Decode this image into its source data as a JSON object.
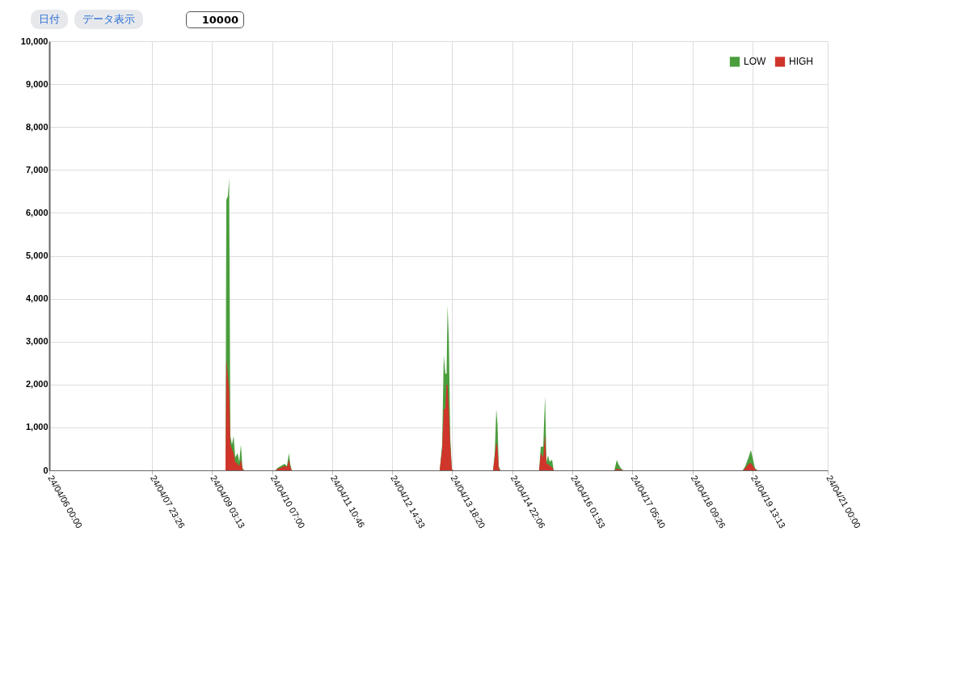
{
  "chart_data": {
    "type": "area",
    "annotations": [
      "日付",
      "データ表示",
      "10000"
    ],
    "x": [
      "--04-06T00:00",
      "--04-09T08:22",
      "--04-09T09:30",
      "--04-09T09:52",
      "--04-09T10:37",
      "--04-09T11:11",
      "--04-09T11:44",
      "--04-09T12:29",
      "--04-09T13:14",
      "--04-09T13:59",
      "--04-09T15:06",
      "--04-09T15:51",
      "--04-09T16:36",
      "--04-09T17:21",
      "--04-09T18:05",
      "--04-10T08:40",
      "--04-10T09:25",
      "--04-10T12:47",
      "--04-10T13:54",
      "--04-10T14:50",
      "--04-10T15:24",
      "--04-10T16:09",
      "--04-13T12:33",
      "--04-13T13:41",
      "--04-13T14:25",
      "--04-13T15:10",
      "--04-13T15:44",
      "--04-13T16:11",
      "--04-13T16:47",
      "--04-13T17:25",
      "--04-13T18:10",
      "--04-13T18:55",
      "--04-14T13:14",
      "--04-14T13:59",
      "--04-14T14:44",
      "--04-14T15:17",
      "--04-14T15:51",
      "--04-14T16:36",
      "--04-15T10:32",
      "--04-15T11:17",
      "--04-15T12:25",
      "--04-15T13:16",
      "--04-15T13:55",
      "--04-15T14:39",
      "--04-15T15:24",
      "--04-15T16:31",
      "--04-15T17:16",
      "--04-16T21:19",
      "--04-16T22:26",
      "--04-16T23:10",
      "--04-17T00:17",
      "--04-17T01:25",
      "--04-19T08:45",
      "--04-19T09:52",
      "--04-19T11:22",
      "--04-19T12:29",
      "--04-19T13:14",
      "--04-19T14:21",
      "--04-19T15:28",
      "--04-21T00:00"
    ],
    "series": [
      {
        "name": "LOW",
        "color": "#4a9e3c",
        "values": [
          0,
          0,
          0,
          6300,
          6400,
          6800,
          800,
          600,
          800,
          300,
          400,
          200,
          600,
          50,
          0,
          0,
          50,
          150,
          100,
          400,
          150,
          0,
          0,
          600,
          2680,
          2250,
          2250,
          3840,
          3030,
          770,
          30,
          0,
          0,
          400,
          1420,
          1080,
          100,
          0,
          0,
          550,
          550,
          1730,
          200,
          350,
          200,
          250,
          0,
          0,
          240,
          150,
          50,
          0,
          0,
          100,
          300,
          470,
          300,
          50,
          0,
          0
        ]
      },
      {
        "name": "HIGH",
        "color": "#d0352b",
        "values": [
          0,
          0,
          0,
          2600,
          2200,
          1850,
          600,
          500,
          400,
          200,
          150,
          100,
          250,
          30,
          0,
          0,
          30,
          100,
          80,
          250,
          80,
          0,
          0,
          500,
          1430,
          1430,
          2000,
          1990,
          1400,
          600,
          20,
          0,
          0,
          300,
          650,
          550,
          50,
          0,
          0,
          400,
          300,
          830,
          150,
          150,
          100,
          80,
          0,
          0,
          40,
          30,
          20,
          0,
          0,
          50,
          150,
          170,
          120,
          30,
          0,
          0
        ]
      }
    ],
    "xlim": [
      "--04-06T00:00",
      "--04-21T00:00"
    ],
    "xticks": [
      {
        "value": "--04-06T00:00",
        "label": "24/04/06 00:00"
      },
      {
        "value": "--04-07T23:26",
        "label": "24/04/07 23:26"
      },
      {
        "value": "--04-09T03:13",
        "label": "24/04/09 03:13"
      },
      {
        "value": "--04-10T07:00",
        "label": "24/04/10 07:00"
      },
      {
        "value": "--04-11T10:46",
        "label": "24/04/11 10:46"
      },
      {
        "value": "--04-12T14:33",
        "label": "24/04/12 14:33"
      },
      {
        "value": "--04-13T18:20",
        "label": "24/04/13 18:20"
      },
      {
        "value": "--04-14T22:06",
        "label": "24/04/14 22:06"
      },
      {
        "value": "--04-16T01:53",
        "label": "24/04/16 01:53"
      },
      {
        "value": "--04-17T05:40",
        "label": "24/04/17 05:40"
      },
      {
        "value": "--04-18T09:26",
        "label": "24/04/18 09:26"
      },
      {
        "value": "--04-19T13:13",
        "label": "24/04/19 13:13"
      },
      {
        "value": "--04-21T00:00",
        "label": "24/04/21 00:00"
      }
    ],
    "ylim": [
      0,
      10000
    ],
    "yticks": [
      0,
      {
        "value": 1000,
        "label": "1,000"
      },
      {
        "value": 2000,
        "label": "2,000"
      },
      {
        "value": 3000,
        "label": "3,000"
      },
      {
        "value": 4000,
        "label": "4,000"
      },
      {
        "value": 5000,
        "label": "5,000"
      },
      {
        "value": 6000,
        "label": "6,000"
      },
      {
        "value": 7000,
        "label": "7,000"
      },
      {
        "value": 8000,
        "label": "8,000"
      },
      {
        "value": 9000,
        "label": "9,000"
      },
      {
        "value": 10000,
        "label": "10,000"
      }
    ],
    "grid": true,
    "legend": "top right"
  }
}
